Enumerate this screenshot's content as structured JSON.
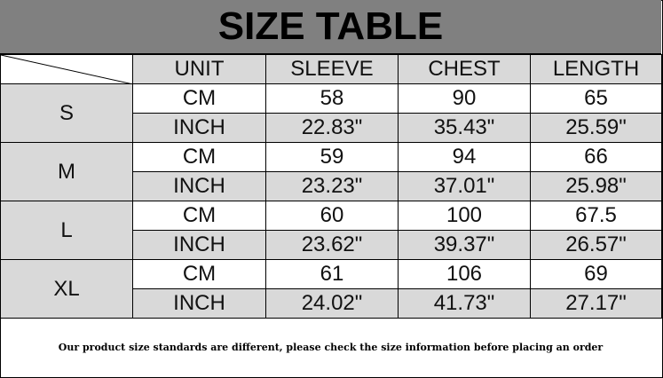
{
  "title": "SIZE TABLE",
  "headers": [
    "UNIT",
    "SLEEVE",
    "CHEST",
    "LENGTH"
  ],
  "sizes": [
    {
      "size": "S",
      "rows": [
        {
          "unit": "CM",
          "sleeve": "58",
          "chest": "90",
          "length": "65"
        },
        {
          "unit": "INCH",
          "sleeve": "22.83\"",
          "chest": "35.43\"",
          "length": "25.59\""
        }
      ]
    },
    {
      "size": "M",
      "rows": [
        {
          "unit": "CM",
          "sleeve": "59",
          "chest": "94",
          "length": "66"
        },
        {
          "unit": "INCH",
          "sleeve": "23.23\"",
          "chest": "37.01\"",
          "length": "25.98\""
        }
      ]
    },
    {
      "size": "L",
      "rows": [
        {
          "unit": "CM",
          "sleeve": "60",
          "chest": "100",
          "length": "67.5"
        },
        {
          "unit": "INCH",
          "sleeve": "23.62\"",
          "chest": "39.37\"",
          "length": "26.57\""
        }
      ]
    },
    {
      "size": "XL",
      "rows": [
        {
          "unit": "CM",
          "sleeve": "61",
          "chest": "106",
          "length": "69"
        },
        {
          "unit": "INCH",
          "sleeve": "24.02\"",
          "chest": "41.73\"",
          "length": "27.17\""
        }
      ]
    }
  ],
  "note": "Our product size standards are different, please check the size information before placing an order",
  "colors": {
    "title_bg": "#808080",
    "cell_gray": "#d9d9d9"
  }
}
